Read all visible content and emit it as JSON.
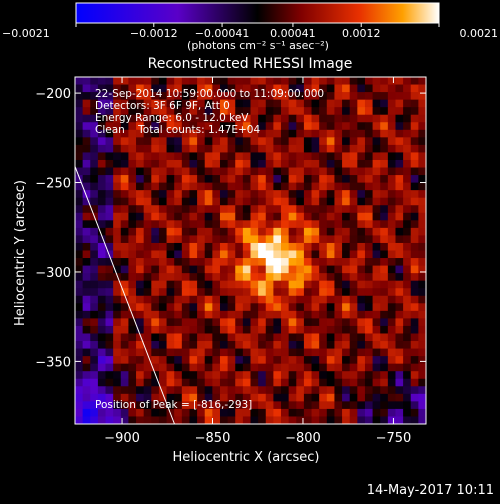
{
  "chart_data": {
    "type": "heatmap",
    "title": "Reconstructed RHESSI Image",
    "xlabel": "Heliocentric X (arcsec)",
    "ylabel": "Heliocentric Y (arcsec)",
    "xlim": [
      -926,
      -732
    ],
    "ylim": [
      -385,
      -191
    ],
    "x_ticks": [
      -900,
      -850,
      -800,
      -750
    ],
    "x_tick_labels": [
      "−900",
      "−850",
      "−800",
      "−750"
    ],
    "y_ticks": [
      -200,
      -250,
      -300,
      -350
    ],
    "y_tick_labels": [
      "−200",
      "−250",
      "−300",
      "−350"
    ],
    "colorbar": {
      "range": [
        -0.0021,
        0.0021
      ],
      "ticks": [
        -0.0021,
        -0.0012,
        -0.00041,
        0.00041,
        0.0012,
        0.0021
      ],
      "tick_labels": [
        "−0.0021",
        "−0.0012",
        "−0.00041",
        "0.00041",
        "0.0012",
        "0.0021"
      ],
      "unit_label": "(photons cm⁻² s⁻¹ asec⁻²)",
      "colors": [
        "#0000ff",
        "#5a00c8",
        "#000000",
        "#800000",
        "#e83000",
        "#ffa000",
        "#ffffff"
      ]
    },
    "annotations": {
      "time_range": "22-Sep-2014 10:59:00.000 to 11:09:00.000",
      "detectors": "Detectors: 3F 6F 9F, Att 0",
      "energy_range": "Energy Range: 6.0 - 12.0 keV",
      "clean_counts": "Clean    Total counts: 1.47E+04",
      "peak_position": "Position of Peak = [-816,-293]"
    },
    "peak": {
      "x": -816,
      "y": -293
    },
    "limb_line": {
      "x1": -926,
      "y1": -241,
      "x2": -871,
      "y2": -385
    }
  },
  "footer": {
    "date": "14-May-2017 10:11"
  }
}
